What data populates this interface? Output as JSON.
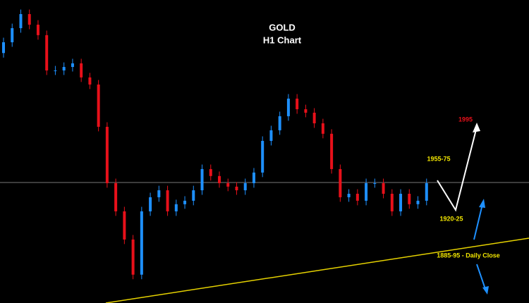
{
  "chart_data": {
    "type": "candlestick",
    "title": "GOLD",
    "subtitle": "H1 Chart",
    "ylim": [
      1850,
      2050
    ],
    "up_color": "#1e90ff",
    "down_color": "#e8101a",
    "open": [
      2015,
      2022.1,
      2031.4,
      2040.7,
      2033.7,
      2026.8,
      2003.5,
      2003.5,
      2005.8,
      2008.2,
      1998.9,
      1994.2,
      1966.3,
      1929.1,
      1910.5,
      1891.9,
      1868.7,
      1910.5,
      1919.8,
      1924.4,
      1910.5,
      1915.2,
      1917.5,
      1924.4,
      1938.4,
      1933.8,
      1929.1,
      1926.8,
      1924.4,
      1929.1,
      1936.1,
      1957.0,
      1964.0,
      1973.3,
      1984.9,
      1977.9,
      1975.6,
      1968.6,
      1961.7,
      1938.4,
      1919.8,
      1922.1,
      1917.5,
      1929.1,
      1929.1,
      1922.1,
      1910.5,
      1922.1,
      1915.2,
      1917.5
    ],
    "high": [
      2025.1,
      2034.4,
      2043.7,
      2043.7,
      2036.7,
      2029.8,
      2006.5,
      2008.8,
      2011.2,
      2011.2,
      2001.9,
      1997.2,
      1969.3,
      1932.1,
      1913.5,
      1894.9,
      1913.5,
      1922.8,
      1927.4,
      1927.4,
      1918.2,
      1920.5,
      1927.4,
      1941.4,
      1941.4,
      1936.8,
      1932.1,
      1929.8,
      1932.1,
      1939.1,
      1960.0,
      1967.0,
      1976.3,
      1987.9,
      1987.9,
      1980.9,
      1978.6,
      1971.6,
      1964.7,
      1941.4,
      1925.1,
      1925.1,
      1932.1,
      1932.1,
      1932.1,
      1925.1,
      1925.1,
      1925.1,
      1920.5,
      1932.1
    ],
    "low": [
      2012,
      2019.1,
      2028.4,
      2030.7,
      2023.8,
      2000.5,
      2000.5,
      2000.5,
      2002.8,
      1995.9,
      1991.2,
      1963.3,
      1926.1,
      1907.5,
      1888.9,
      1865.7,
      1865.7,
      1907.5,
      1916.8,
      1907.5,
      1907.5,
      1912.2,
      1914.5,
      1921.4,
      1930.8,
      1926.1,
      1923.8,
      1921.4,
      1921.4,
      1926.1,
      1933.1,
      1954.0,
      1961.0,
      1970.3,
      1974.9,
      1972.6,
      1965.6,
      1958.7,
      1935.4,
      1916.8,
      1916.8,
      1914.5,
      1914.5,
      1926.1,
      1919.1,
      1907.5,
      1907.5,
      1912.2,
      1912.2,
      1914.5
    ],
    "close": [
      2022.1,
      2031.4,
      2040.7,
      2033.7,
      2026.8,
      2003.5,
      2003.5,
      2005.8,
      2008.2,
      1998.9,
      1994.2,
      1966.3,
      1929.1,
      1910.5,
      1891.9,
      1868.7,
      1910.5,
      1919.8,
      1924.4,
      1910.5,
      1915.2,
      1917.5,
      1924.4,
      1938.4,
      1933.8,
      1929.1,
      1926.8,
      1924.4,
      1929.1,
      1936.1,
      1957.0,
      1964.0,
      1973.3,
      1984.9,
      1977.9,
      1975.6,
      1968.6,
      1961.7,
      1938.4,
      1919.8,
      1922.1,
      1917.5,
      1929.1,
      1929.1,
      1922.1,
      1910.5,
      1922.1,
      1915.2,
      1917.5,
      1929.1
    ],
    "annotations": [
      "1995",
      "1955-75",
      "1920-25",
      "1885-95 - Daily Close"
    ]
  }
}
